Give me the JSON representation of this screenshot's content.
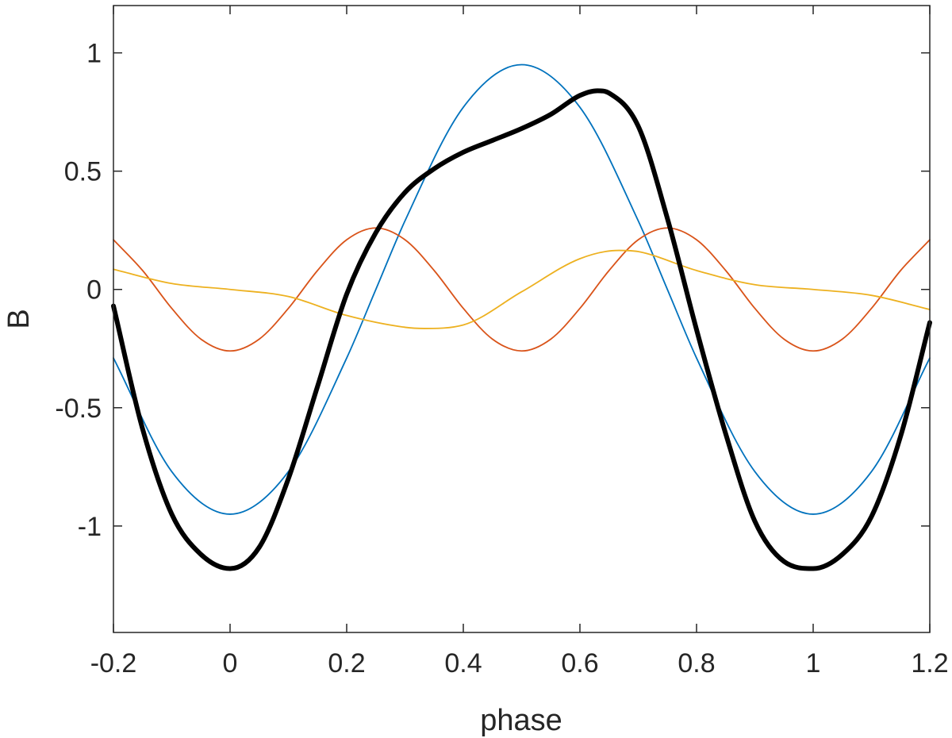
{
  "chart_data": {
    "type": "line",
    "title": "",
    "xlabel": "phase",
    "ylabel": "B",
    "xlim": [
      -0.2,
      1.2
    ],
    "ylim": [
      -1.45,
      1.2
    ],
    "xticks": [
      -0.2,
      0,
      0.2,
      0.4,
      0.6,
      0.8,
      1,
      1.2
    ],
    "xtick_labels": [
      "-0.2",
      "0",
      "0.2",
      "0.4",
      "0.6",
      "0.8",
      "1",
      "1.2"
    ],
    "yticks": [
      -1,
      -0.5,
      0,
      0.5,
      1
    ],
    "ytick_labels": [
      "-1",
      "-0.5",
      "0",
      "0.5",
      "1"
    ],
    "grid": false,
    "legend": "none",
    "series": [
      {
        "color": "#0072BD",
        "style": "thin",
        "x": [
          -0.2,
          -0.1,
          0,
          0.1,
          0.2,
          0.25,
          0.3,
          0.4,
          0.5,
          0.6,
          0.7,
          0.75,
          0.8,
          0.9,
          1,
          1.1,
          1.2
        ],
        "y": [
          -0.29,
          -0.77,
          -0.95,
          -0.77,
          -0.29,
          0,
          0.29,
          0.77,
          0.95,
          0.77,
          0.29,
          0,
          -0.29,
          -0.77,
          -0.95,
          -0.77,
          -0.29
        ]
      },
      {
        "color": "#D95319",
        "style": "thin",
        "x": [
          -0.2,
          -0.15,
          -0.1,
          -0.05,
          0,
          0.05,
          0.1,
          0.15,
          0.2,
          0.25,
          0.3,
          0.35,
          0.4,
          0.45,
          0.5,
          0.55,
          0.6,
          0.65,
          0.7,
          0.75,
          0.8,
          0.85,
          0.9,
          0.95,
          1,
          1.05,
          1.1,
          1.15,
          1.2
        ],
        "y": [
          0.21,
          0.08,
          -0.08,
          -0.21,
          -0.26,
          -0.21,
          -0.08,
          0.08,
          0.21,
          0.26,
          0.21,
          0.08,
          -0.08,
          -0.21,
          -0.26,
          -0.21,
          -0.08,
          0.08,
          0.21,
          0.26,
          0.21,
          0.08,
          -0.08,
          -0.21,
          -0.26,
          -0.21,
          -0.08,
          0.08,
          0.21
        ]
      },
      {
        "color": "#EDB120",
        "style": "thin",
        "x": [
          -0.2,
          -0.1,
          0,
          0.1,
          0.2,
          0.3,
          0.333,
          0.4,
          0.5,
          0.6,
          0.667,
          0.7,
          0.8,
          0.9,
          1,
          1.1,
          1.2
        ],
        "y": [
          0.085,
          0.025,
          0,
          -0.03,
          -0.11,
          -0.16,
          -0.165,
          -0.15,
          -0.01,
          0.13,
          0.165,
          0.16,
          0.08,
          0.02,
          0,
          -0.025,
          -0.085
        ]
      },
      {
        "color": "#000000",
        "style": "thick",
        "x": [
          -0.2,
          -0.15,
          -0.1,
          -0.05,
          0,
          0.05,
          0.1,
          0.15,
          0.2,
          0.25,
          0.3,
          0.35,
          0.4,
          0.45,
          0.5,
          0.55,
          0.6,
          0.63,
          0.65,
          0.7,
          0.75,
          0.8,
          0.85,
          0.9,
          0.95,
          1,
          1.05,
          1.1,
          1.15,
          1.2
        ],
        "y": [
          -0.07,
          -0.59,
          -0.95,
          -1.12,
          -1.18,
          -1.09,
          -0.8,
          -0.41,
          -0.02,
          0.24,
          0.41,
          0.51,
          0.58,
          0.63,
          0.68,
          0.74,
          0.82,
          0.84,
          0.83,
          0.69,
          0.3,
          -0.17,
          -0.61,
          -0.98,
          -1.15,
          -1.18,
          -1.12,
          -0.96,
          -0.62,
          -0.14
        ]
      }
    ]
  }
}
